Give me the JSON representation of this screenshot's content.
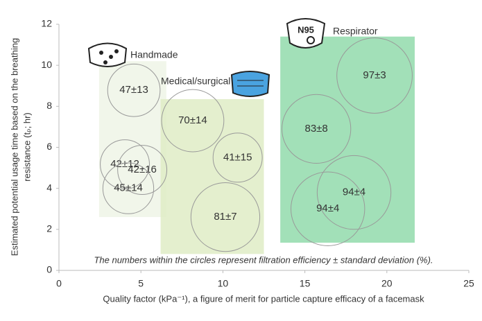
{
  "chart_data": {
    "type": "bubble",
    "xlabel": "Quality factor (kPa⁻¹), a figure of merit for particle capture efficacy of a facemask",
    "ylabel": [
      "Estimated potential usage time based on the breathing",
      "resistance (tₚ; hr)"
    ],
    "annotation": "The numbers within the circles represent filtration efficiency ± standard deviation (%).",
    "icon_text": "N95",
    "xlim": [
      0,
      25
    ],
    "xticks": [
      0,
      5,
      10,
      15,
      20,
      25
    ],
    "ylim": [
      0,
      12
    ],
    "yticks": [
      0,
      2,
      4,
      6,
      8,
      10,
      12
    ],
    "regions": [
      {
        "name": "Handmade",
        "x": [
          2.45,
          6.55
        ],
        "y": [
          2.6,
          10.2
        ],
        "color": "#eef5e6"
      },
      {
        "name": "Medical/surgical",
        "x": [
          6.2,
          12.5
        ],
        "y": [
          0.8,
          8.35
        ],
        "color": "#dfecc6"
      },
      {
        "name": "Respirator",
        "x": [
          13.5,
          21.7
        ],
        "y": [
          1.35,
          11.4
        ],
        "color": "#92dbac"
      }
    ],
    "points": [
      {
        "label": "47±13",
        "x": 4.57,
        "y": 8.78,
        "size": 1.6
      },
      {
        "label": "42±12",
        "x": 4.02,
        "y": 5.17,
        "size": 1.5
      },
      {
        "label": "42±16",
        "x": 5.08,
        "y": 4.9,
        "size": 1.5
      },
      {
        "label": "45±14",
        "x": 4.23,
        "y": 4.0,
        "size": 1.55
      },
      {
        "label": "70±14",
        "x": 8.16,
        "y": 7.3,
        "size": 1.9
      },
      {
        "label": "41±15",
        "x": 10.9,
        "y": 5.5,
        "size": 1.5
      },
      {
        "label": "81±7",
        "x": 10.15,
        "y": 2.6,
        "size": 2.1
      },
      {
        "label": "83±8",
        "x": 15.7,
        "y": 6.9,
        "size": 2.1
      },
      {
        "label": "97±3",
        "x": 19.25,
        "y": 9.5,
        "size": 2.3
      },
      {
        "label": "94±4",
        "x": 18.0,
        "y": 3.8,
        "size": 2.25
      },
      {
        "label": "94±4",
        "x": 16.4,
        "y": 3.0,
        "size": 2.25
      }
    ]
  }
}
